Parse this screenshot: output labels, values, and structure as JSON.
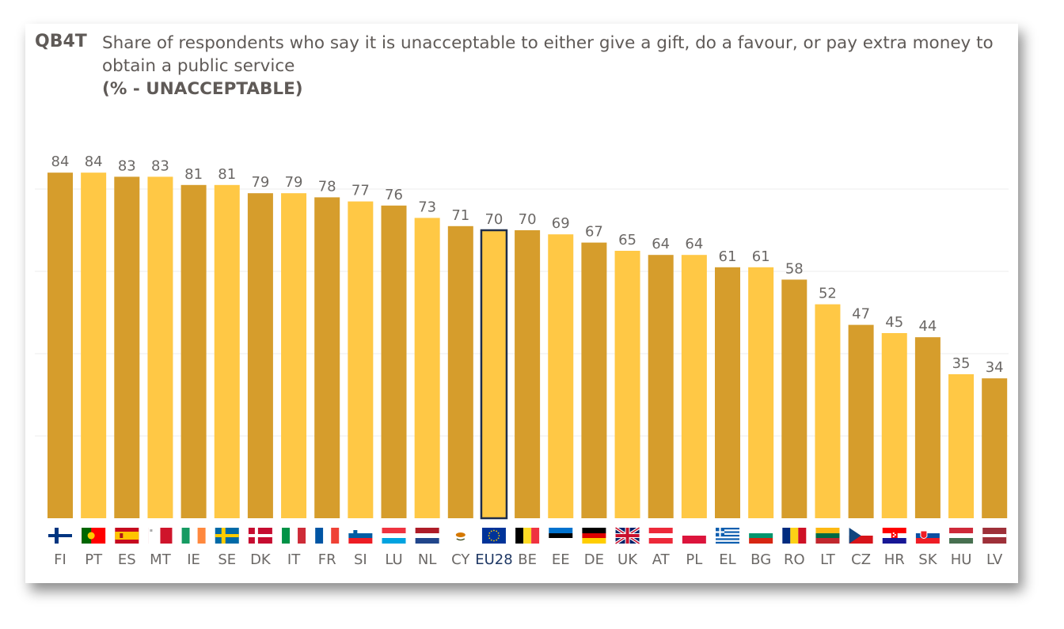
{
  "header": {
    "code": "QB4T",
    "question": "Share of respondents who say it is unacceptable to either give a gift, do a favour, or pay extra money to obtain a public service",
    "subtitle": "(% - UNACCEPTABLE)"
  },
  "colors": {
    "dark_bar": "#D69D2C",
    "light_bar": "#FFC845",
    "highlight_border": "#1F2D4A",
    "text": "#5F5A57",
    "grid": "#EEEEEE"
  },
  "chart_data": {
    "type": "bar",
    "ylim": [
      0,
      100
    ],
    "grid": true,
    "highlight": "EU28",
    "categories": [
      "FI",
      "PT",
      "ES",
      "MT",
      "IE",
      "SE",
      "DK",
      "IT",
      "FR",
      "SI",
      "LU",
      "NL",
      "CY",
      "EU28",
      "BE",
      "EE",
      "DE",
      "UK",
      "AT",
      "PL",
      "EL",
      "BG",
      "RO",
      "LT",
      "CZ",
      "HR",
      "SK",
      "HU",
      "LV"
    ],
    "values": [
      84,
      84,
      83,
      83,
      81,
      81,
      79,
      79,
      78,
      77,
      76,
      73,
      71,
      70,
      70,
      69,
      67,
      65,
      64,
      64,
      61,
      61,
      58,
      52,
      47,
      45,
      44,
      35,
      34
    ],
    "flag_icons": [
      "finland-flag-icon",
      "portugal-flag-icon",
      "spain-flag-icon",
      "malta-flag-icon",
      "ireland-flag-icon",
      "sweden-flag-icon",
      "denmark-flag-icon",
      "italy-flag-icon",
      "france-flag-icon",
      "slovenia-flag-icon",
      "luxembourg-flag-icon",
      "netherlands-flag-icon",
      "cyprus-flag-icon",
      "eu-flag-icon",
      "belgium-flag-icon",
      "estonia-flag-icon",
      "germany-flag-icon",
      "uk-flag-icon",
      "austria-flag-icon",
      "poland-flag-icon",
      "greece-flag-icon",
      "bulgaria-flag-icon",
      "romania-flag-icon",
      "lithuania-flag-icon",
      "czechia-flag-icon",
      "croatia-flag-icon",
      "slovakia-flag-icon",
      "hungary-flag-icon",
      "latvia-flag-icon"
    ]
  }
}
